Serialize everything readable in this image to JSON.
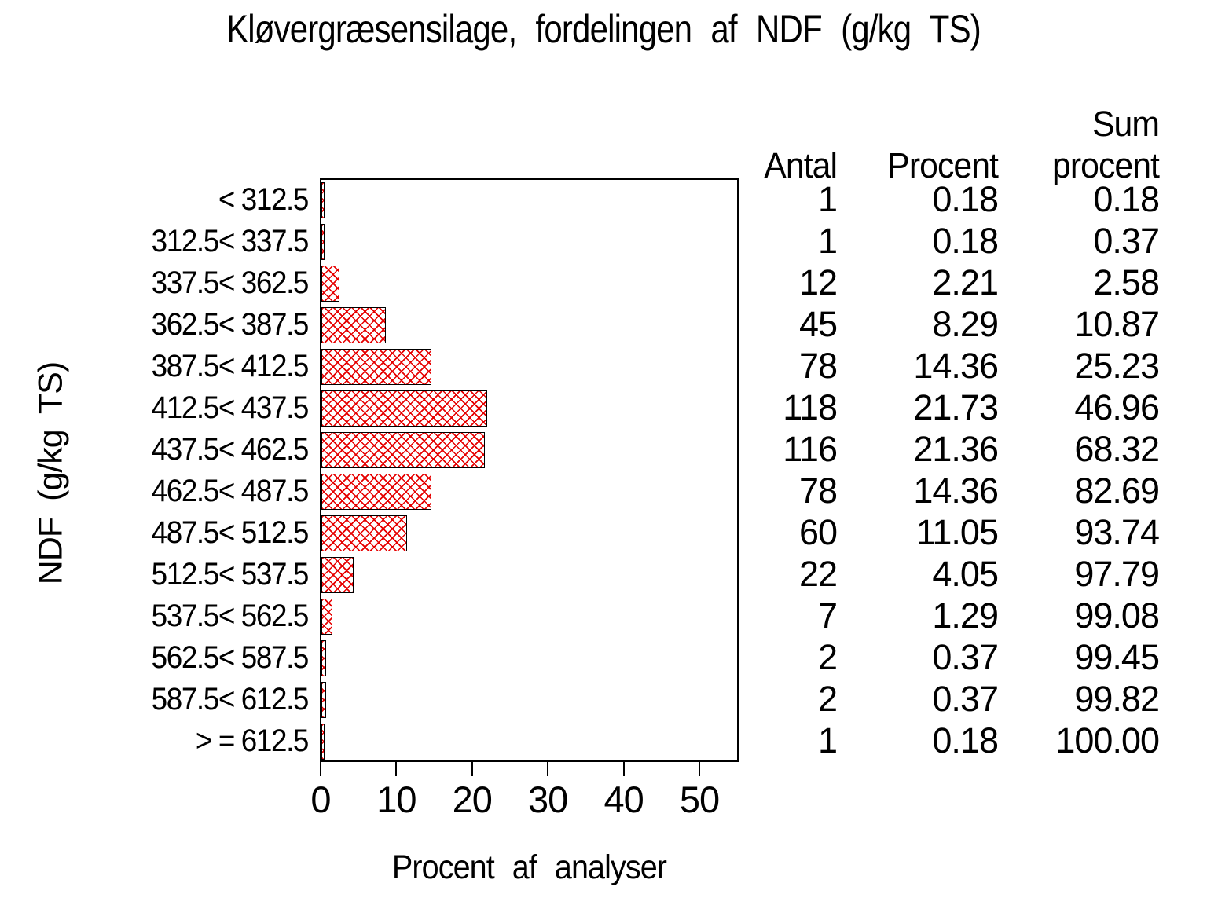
{
  "title": "Kløvergræsensilage, fordelingen af NDF (g/kg TS)",
  "chart_data": {
    "type": "bar",
    "orientation": "horizontal",
    "title": "Kløvergræsensilage, fordelingen af NDF (g/kg TS)",
    "xlabel": "Procent af analyser",
    "ylabel": "NDF (g/kg TS)",
    "categories": [
      "< 312.5",
      "312.5< 337.5",
      "337.5< 362.5",
      "362.5< 387.5",
      "387.5< 412.5",
      "412.5< 437.5",
      "437.5< 462.5",
      "462.5< 487.5",
      "487.5< 512.5",
      "512.5< 537.5",
      "537.5< 562.5",
      "562.5< 587.5",
      "587.5< 612.5",
      "> = 612.5"
    ],
    "series": [
      {
        "name": "Antal",
        "values": [
          1,
          1,
          12,
          45,
          78,
          118,
          116,
          78,
          60,
          22,
          7,
          2,
          2,
          1
        ]
      },
      {
        "name": "Procent",
        "values": [
          0.18,
          0.18,
          2.21,
          8.29,
          14.36,
          21.73,
          21.36,
          14.36,
          11.05,
          4.05,
          1.29,
          0.37,
          0.37,
          0.18
        ]
      },
      {
        "name": "Sum procent",
        "values": [
          0.18,
          0.37,
          2.58,
          10.87,
          25.23,
          46.96,
          68.32,
          82.69,
          93.74,
          97.79,
          99.08,
          99.45,
          99.82,
          100.0
        ]
      }
    ],
    "bar_series": "Procent",
    "x_ticks": [
      0,
      10,
      20,
      30,
      40,
      50
    ],
    "xlim": [
      0,
      55.2
    ],
    "grid": false,
    "legend": false,
    "bar_fill_pattern": "red-crosshatch",
    "bar_pattern_color": "#e60000",
    "bar_border_color": "#000000",
    "frame_color": "#000000",
    "background_color": "#ffffff"
  },
  "table": {
    "header_antal": "Antal",
    "header_procent": "Procent",
    "header_sum_line1": "Sum",
    "header_sum_line2": "procent",
    "rows": [
      {
        "antal": "1",
        "procent": "0.18",
        "sum": "0.18"
      },
      {
        "antal": "1",
        "procent": "0.18",
        "sum": "0.37"
      },
      {
        "antal": "12",
        "procent": "2.21",
        "sum": "2.58"
      },
      {
        "antal": "45",
        "procent": "8.29",
        "sum": "10.87"
      },
      {
        "antal": "78",
        "procent": "14.36",
        "sum": "25.23"
      },
      {
        "antal": "118",
        "procent": "21.73",
        "sum": "46.96"
      },
      {
        "antal": "116",
        "procent": "21.36",
        "sum": "68.32"
      },
      {
        "antal": "78",
        "procent": "14.36",
        "sum": "82.69"
      },
      {
        "antal": "60",
        "procent": "11.05",
        "sum": "93.74"
      },
      {
        "antal": "22",
        "procent": "4.05",
        "sum": "97.79"
      },
      {
        "antal": "7",
        "procent": "1.29",
        "sum": "99.08"
      },
      {
        "antal": "2",
        "procent": "0.37",
        "sum": "99.45"
      },
      {
        "antal": "2",
        "procent": "0.37",
        "sum": "99.82"
      },
      {
        "antal": "1",
        "procent": "0.18",
        "sum": "100.00"
      }
    ]
  }
}
